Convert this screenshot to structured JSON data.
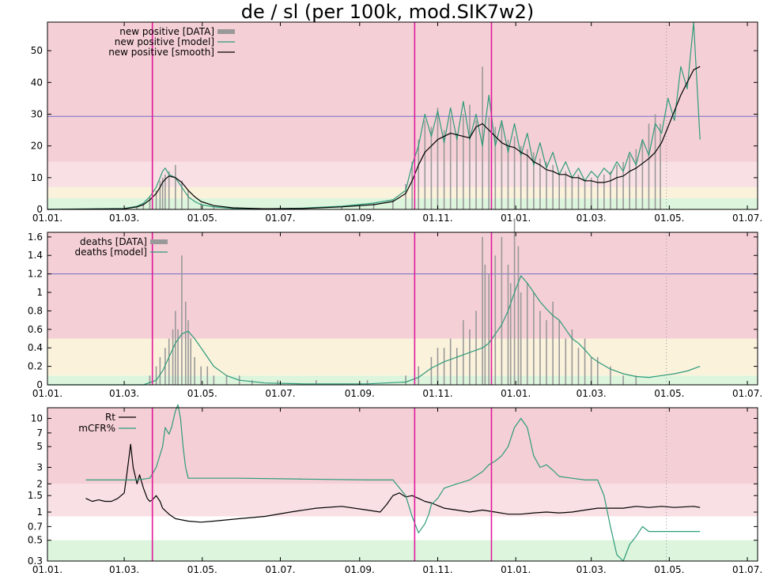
{
  "title": "de / sl (per 100k, mod.SIK7w2)",
  "colors": {
    "data_bar": "#999999",
    "model_line": "#2e9b7a",
    "smooth_line": "#000000",
    "threshold_line": "#7070c8",
    "event_line": "#e0199a",
    "zone_red": "#f5cfd6",
    "zone_pink": "#f9e0e4",
    "zone_yellow": "#fbf2dc",
    "zone_green": "#dcf5dc"
  },
  "chart_data": [
    {
      "type": "line",
      "panel": "top",
      "x_range_days": [
        0,
        555
      ],
      "x_ticks": [
        "01.01.",
        "01.03.",
        "01.05.",
        "01.07.",
        "01.09.",
        "01.11.",
        "01.01.",
        "01.03.",
        "01.05.",
        "01.07."
      ],
      "x_tick_days": [
        0,
        60,
        121,
        182,
        244,
        305,
        366,
        425,
        486,
        547
      ],
      "ylim": [
        0,
        59
      ],
      "y_ticks": [
        "0",
        "10",
        "20",
        "30",
        "40",
        "50"
      ],
      "y_tick_values": [
        0,
        10,
        20,
        30,
        40,
        50
      ],
      "threshold": 29.3,
      "zones": [
        {
          "from": 0,
          "to": 3.5,
          "color": "zone_green"
        },
        {
          "from": 3.5,
          "to": 7,
          "color": "zone_yellow"
        },
        {
          "from": 7,
          "to": 15,
          "color": "zone_pink"
        },
        {
          "from": 15,
          "to": 59,
          "color": "zone_red"
        }
      ],
      "event_days": [
        82,
        287,
        347
      ],
      "data_end_day": 480,
      "legend": [
        "new positive [DATA]",
        "new positive [model]",
        "new positive [smooth]"
      ],
      "series": [
        {
          "name": "new positive [DATA]",
          "style": "bars",
          "x": [
            60,
            70,
            75,
            80,
            85,
            88,
            90,
            92,
            95,
            100,
            105,
            110,
            120,
            130,
            145,
            170,
            200,
            230,
            255,
            270,
            280,
            285,
            290,
            295,
            300,
            305,
            310,
            315,
            320,
            325,
            330,
            335,
            340,
            345,
            350,
            355,
            360,
            365,
            370,
            375,
            380,
            385,
            390,
            395,
            400,
            405,
            410,
            415,
            420,
            425,
            430,
            435,
            440,
            445,
            450,
            455,
            460,
            465,
            470,
            475,
            479
          ],
          "values": [
            0.3,
            1,
            2,
            4,
            6,
            9,
            10,
            11,
            12,
            14,
            9,
            6,
            2,
            1,
            0.4,
            0.2,
            0.5,
            1,
            2,
            3,
            8,
            15,
            22,
            28,
            26,
            32,
            25,
            29,
            24,
            30,
            33,
            28,
            45,
            29,
            26,
            27,
            22,
            23,
            20,
            19,
            18,
            16,
            15,
            14,
            11,
            12,
            10,
            11,
            9,
            10,
            10,
            11,
            12,
            14,
            15,
            17,
            19,
            22,
            27,
            30,
            27
          ]
        },
        {
          "name": "new positive [model]",
          "style": "line",
          "x": [
            0,
            60,
            70,
            75,
            80,
            85,
            88,
            90,
            92,
            95,
            100,
            105,
            110,
            115,
            120,
            130,
            145,
            170,
            200,
            230,
            255,
            270,
            280,
            285,
            290,
            295,
            300,
            305,
            310,
            315,
            320,
            325,
            330,
            335,
            340,
            345,
            350,
            355,
            360,
            365,
            370,
            375,
            380,
            385,
            390,
            395,
            400,
            405,
            410,
            415,
            420,
            425,
            430,
            435,
            440,
            445,
            450,
            455,
            460,
            465,
            470,
            475,
            480,
            485,
            490,
            495,
            500,
            505,
            510
          ],
          "values": [
            0,
            0.3,
            1,
            2,
            4,
            7,
            10,
            12,
            13,
            11,
            10,
            7,
            4,
            2.5,
            1.5,
            0.8,
            0.3,
            0.2,
            0.4,
            1,
            2,
            3,
            6,
            14,
            20,
            30,
            23,
            31,
            21,
            32,
            22,
            34,
            22,
            30,
            20,
            36,
            20,
            28,
            18,
            27,
            17,
            24,
            14,
            21,
            13,
            18,
            11,
            15,
            10,
            13,
            9,
            12,
            10,
            13,
            11,
            15,
            12,
            18,
            14,
            22,
            17,
            27,
            24,
            35,
            28,
            45,
            38,
            59,
            22
          ]
        },
        {
          "name": "new positive [smooth]",
          "style": "line",
          "x": [
            0,
            60,
            70,
            75,
            80,
            85,
            88,
            90,
            92,
            95,
            100,
            105,
            110,
            115,
            120,
            130,
            145,
            170,
            200,
            230,
            255,
            270,
            280,
            285,
            290,
            295,
            300,
            305,
            310,
            315,
            320,
            325,
            330,
            335,
            340,
            345,
            350,
            355,
            360,
            365,
            370,
            375,
            380,
            385,
            390,
            395,
            400,
            405,
            410,
            415,
            420,
            425,
            430,
            435,
            440,
            445,
            450,
            455,
            460,
            465,
            470,
            475,
            480,
            485,
            490,
            495,
            500,
            505,
            510
          ],
          "values": [
            0,
            0.2,
            0.8,
            1.5,
            3,
            5,
            7,
            8.5,
            9.5,
            10.5,
            10,
            8.5,
            6,
            4,
            2.5,
            1.2,
            0.5,
            0.2,
            0.3,
            0.8,
            1.5,
            2.5,
            5,
            9,
            14,
            18,
            20,
            22,
            23,
            24,
            23.5,
            23,
            22.5,
            26,
            27,
            25,
            23,
            21,
            20,
            19.5,
            18,
            17,
            15,
            14,
            12.5,
            12,
            11,
            11,
            10,
            10,
            9,
            9,
            8.5,
            8.5,
            9,
            10,
            10.5,
            12,
            13,
            14.5,
            16,
            18,
            21,
            26,
            31,
            36,
            40,
            44,
            45
          ]
        }
      ]
    },
    {
      "type": "line",
      "panel": "middle",
      "x_range_days": [
        0,
        555
      ],
      "x_ticks": [
        "01.01.",
        "01.03.",
        "01.05.",
        "01.07.",
        "01.09.",
        "01.11.",
        "01.01.",
        "01.03.",
        "01.05.",
        "01.07."
      ],
      "x_tick_days": [
        0,
        60,
        121,
        182,
        244,
        305,
        366,
        425,
        486,
        547
      ],
      "ylim": [
        0,
        1.65
      ],
      "y_ticks": [
        "0",
        "0.2",
        "0.4",
        "0.6",
        "0.8",
        "1",
        "1.2",
        "1.4",
        "1.6"
      ],
      "y_tick_values": [
        0,
        0.2,
        0.4,
        0.6,
        0.8,
        1,
        1.2,
        1.4,
        1.6
      ],
      "threshold": 1.2,
      "zones": [
        {
          "from": 0,
          "to": 0.1,
          "color": "zone_green"
        },
        {
          "from": 0.1,
          "to": 0.5,
          "color": "zone_yellow"
        },
        {
          "from": 0.5,
          "to": 1.65,
          "color": "zone_red"
        }
      ],
      "event_days": [
        82,
        287,
        347
      ],
      "data_end_day": 480,
      "legend": [
        "deaths [DATA]",
        "deaths [model]"
      ],
      "series": [
        {
          "name": "deaths [DATA]",
          "style": "bars",
          "x": [
            80,
            85,
            88,
            92,
            95,
            98,
            100,
            102,
            105,
            108,
            110,
            112,
            115,
            120,
            125,
            130,
            140,
            150,
            160,
            180,
            210,
            250,
            280,
            290,
            300,
            305,
            310,
            315,
            320,
            325,
            330,
            335,
            340,
            342,
            345,
            350,
            355,
            360,
            362,
            365,
            368,
            370,
            375,
            380,
            385,
            390,
            395,
            400,
            405,
            410,
            415,
            420,
            425,
            430,
            440,
            450,
            460
          ],
          "values": [
            0.1,
            0.2,
            0.3,
            0.4,
            0.5,
            0.6,
            0.8,
            0.6,
            1.4,
            0.9,
            0.7,
            0.5,
            0.3,
            0.2,
            0.2,
            0.1,
            0.1,
            0.1,
            0.05,
            0.05,
            0.05,
            0.05,
            0.1,
            0.2,
            0.3,
            0.4,
            0.4,
            0.5,
            0.4,
            0.7,
            0.6,
            0.8,
            1.6,
            1.3,
            1.2,
            1.4,
            1.6,
            1.3,
            1.1,
            1.8,
            1.5,
            1.0,
            1.1,
            1.0,
            0.8,
            0.7,
            0.9,
            0.7,
            0.5,
            0.6,
            0.4,
            0.5,
            0.3,
            0.3,
            0.2,
            0.1,
            0.1
          ]
        },
        {
          "name": "deaths [model]",
          "style": "line",
          "x": [
            0,
            75,
            85,
            90,
            95,
            100,
            105,
            110,
            115,
            120,
            125,
            130,
            140,
            150,
            170,
            200,
            250,
            280,
            290,
            300,
            310,
            320,
            330,
            340,
            345,
            350,
            355,
            360,
            365,
            370,
            375,
            380,
            385,
            390,
            395,
            400,
            405,
            410,
            415,
            420,
            425,
            430,
            440,
            450,
            460,
            470,
            480,
            490,
            500,
            510
          ],
          "values": [
            0,
            0,
            0.05,
            0.15,
            0.3,
            0.45,
            0.55,
            0.58,
            0.5,
            0.4,
            0.3,
            0.2,
            0.1,
            0.05,
            0.02,
            0.01,
            0.01,
            0.03,
            0.08,
            0.18,
            0.25,
            0.3,
            0.35,
            0.4,
            0.45,
            0.55,
            0.65,
            0.8,
            1.0,
            1.18,
            1.1,
            1.0,
            0.9,
            0.82,
            0.75,
            0.7,
            0.6,
            0.5,
            0.45,
            0.38,
            0.3,
            0.25,
            0.17,
            0.12,
            0.09,
            0.08,
            0.1,
            0.12,
            0.15,
            0.2
          ]
        }
      ]
    },
    {
      "type": "line",
      "panel": "bottom",
      "scale": "log",
      "x_range_days": [
        0,
        555
      ],
      "x_ticks": [
        "01.01.",
        "01.03.",
        "01.05.",
        "01.07.",
        "01.09.",
        "01.11.",
        "01.01.",
        "01.03.",
        "01.05.",
        "01.07."
      ],
      "x_tick_days": [
        0,
        60,
        121,
        182,
        244,
        305,
        366,
        425,
        486,
        547
      ],
      "ylim": [
        0.3,
        13
      ],
      "y_ticks": [
        "0.3",
        "0.5",
        "0.7",
        "1",
        "1.5",
        "2",
        "3",
        "5",
        "7",
        "10"
      ],
      "y_tick_values": [
        0.3,
        0.5,
        0.7,
        1,
        1.5,
        2,
        3,
        5,
        7,
        10
      ],
      "zones": [
        {
          "from": 0.3,
          "to": 0.5,
          "color": "zone_green"
        },
        {
          "from": 0.9,
          "to": 2.0,
          "color": "zone_pink"
        },
        {
          "from": 2.0,
          "to": 13,
          "color": "zone_red"
        }
      ],
      "event_days": [
        82,
        287,
        347
      ],
      "data_end_day": 480,
      "legend": [
        "Rt",
        "mCFR%"
      ],
      "series": [
        {
          "name": "Rt",
          "style": "line",
          "color_key": "smooth_line",
          "x": [
            30,
            35,
            40,
            45,
            50,
            55,
            60,
            62,
            65,
            67,
            70,
            72,
            75,
            78,
            80,
            82,
            85,
            88,
            90,
            95,
            100,
            110,
            120,
            130,
            150,
            170,
            190,
            210,
            230,
            250,
            260,
            265,
            270,
            275,
            280,
            285,
            290,
            295,
            300,
            310,
            320,
            330,
            340,
            350,
            360,
            370,
            380,
            390,
            400,
            410,
            420,
            430,
            440,
            450,
            460,
            470,
            480,
            490,
            505,
            510
          ],
          "values": [
            1.4,
            1.3,
            1.35,
            1.3,
            1.3,
            1.4,
            1.6,
            2.5,
            5.3,
            3.0,
            2.0,
            2.5,
            1.8,
            1.4,
            1.3,
            1.35,
            1.5,
            1.3,
            1.1,
            0.95,
            0.85,
            0.8,
            0.78,
            0.8,
            0.85,
            0.9,
            1.0,
            1.1,
            1.15,
            1.05,
            1.0,
            1.2,
            1.5,
            1.6,
            1.45,
            1.5,
            1.4,
            1.3,
            1.25,
            1.1,
            1.05,
            1.0,
            1.05,
            1.0,
            0.95,
            0.95,
            0.98,
            1.0,
            0.98,
            1.0,
            1.05,
            1.1,
            1.1,
            1.1,
            1.15,
            1.12,
            1.15,
            1.12,
            1.15,
            1.12
          ]
        },
        {
          "name": "mCFR%",
          "style": "line",
          "color_key": "model_line",
          "x": [
            30,
            50,
            70,
            75,
            80,
            85,
            90,
            92,
            95,
            97,
            100,
            102,
            104,
            106,
            108,
            110,
            115,
            120,
            150,
            200,
            250,
            270,
            280,
            285,
            290,
            295,
            298,
            300,
            305,
            310,
            320,
            330,
            340,
            345,
            350,
            355,
            360,
            365,
            370,
            375,
            380,
            385,
            390,
            395,
            400,
            410,
            420,
            425,
            430,
            435,
            440,
            445,
            450,
            455,
            460,
            465,
            470,
            475,
            480,
            490,
            500,
            510
          ],
          "values": [
            2.2,
            2.2,
            2.2,
            2.25,
            2.3,
            3.0,
            5.0,
            8.0,
            6.8,
            8.0,
            12.0,
            14.0,
            10.0,
            5.0,
            3.0,
            2.3,
            2.3,
            2.3,
            2.3,
            2.25,
            2.2,
            2.2,
            1.5,
            0.9,
            0.6,
            0.75,
            0.95,
            1.2,
            1.4,
            1.8,
            2.0,
            2.2,
            2.7,
            3.2,
            3.5,
            4.0,
            5.0,
            8.0,
            10.0,
            8.0,
            4.0,
            3.0,
            3.2,
            2.8,
            2.4,
            2.3,
            2.2,
            2.2,
            2.2,
            1.5,
            0.7,
            0.35,
            0.3,
            0.45,
            0.55,
            0.7,
            0.62,
            0.62,
            0.62,
            0.62,
            0.62,
            0.62
          ]
        }
      ]
    }
  ]
}
